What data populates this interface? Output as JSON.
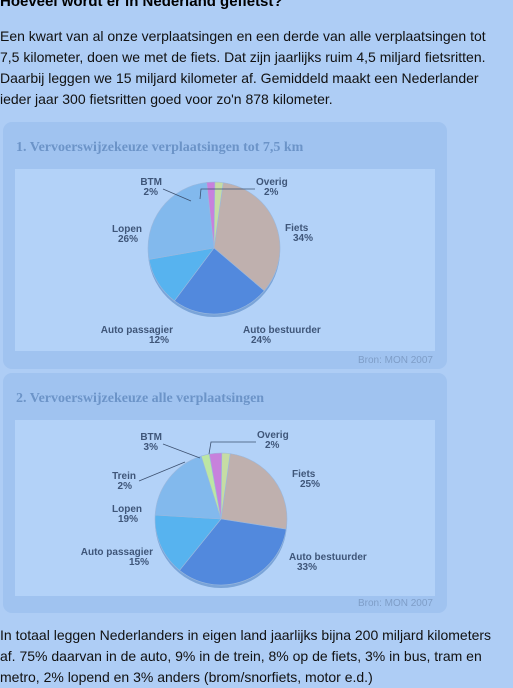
{
  "article": {
    "title": "Hoeveel wordt er in Nederland gefietst?",
    "intro": "Een kwart van al onze verplaatsingen en een derde van alle verplaatsingen tot 7,5 kilometer, doen we met de fiets. Dat zijn jaarlijks ruim 4,5 miljard fietsritten. Daarbij leggen we 15 miljard kilometer af. Gemiddeld maakt een Nederlander ieder jaar 300 fietsritten goed voor zo'n 878 kilometer.",
    "closing": "In totaal leggen Nederlanders in eigen land jaarlijks bijna 200 miljard kilometers af. 75% daarvan in de auto, 9% in de trein, 8% op de fiets, 3% in bus, tram en metro, 2% lopend en 3% anders (brom/snorfiets, motor e.d.)"
  },
  "colors": {
    "fiets": "#bfb0ae",
    "auto_bestuurder": "#5289dd",
    "auto_passagier": "#57b3ef",
    "lopen": "#82b9ed",
    "trein": "#bce6a4",
    "btm": "#c781dc",
    "overig": "#c6dca4"
  },
  "chart_data": [
    {
      "type": "pie",
      "title": "1. Vervoerswijzekeuze verplaatsingen tot 7,5 km",
      "source": "Bron: MON 2007",
      "slices": [
        {
          "label": "Fiets",
          "pct": "34%",
          "value": 34,
          "key": "fiets"
        },
        {
          "label": "Auto bestuurder",
          "pct": "24%",
          "value": 24,
          "key": "auto_bestuurder"
        },
        {
          "label": "Auto passagier",
          "pct": "12%",
          "value": 12,
          "key": "auto_passagier"
        },
        {
          "label": "Lopen",
          "pct": "26%",
          "value": 26,
          "key": "lopen"
        },
        {
          "label": "BTM",
          "pct": "2%",
          "value": 2,
          "key": "btm"
        },
        {
          "label": "Overig",
          "pct": "2%",
          "value": 2,
          "key": "overig"
        }
      ]
    },
    {
      "type": "pie",
      "title": "2. Vervoerswijzekeuze alle verplaatsingen",
      "source": "Bron: MON 2007",
      "slices": [
        {
          "label": "Fiets",
          "pct": "25%",
          "value": 25,
          "key": "fiets"
        },
        {
          "label": "Auto bestuurder",
          "pct": "33%",
          "value": 33,
          "key": "auto_bestuurder"
        },
        {
          "label": "Auto passagier",
          "pct": "15%",
          "value": 15,
          "key": "auto_passagier"
        },
        {
          "label": "Lopen",
          "pct": "19%",
          "value": 19,
          "key": "lopen"
        },
        {
          "label": "Trein",
          "pct": "2%",
          "value": 2,
          "key": "trein"
        },
        {
          "label": "BTM",
          "pct": "3%",
          "value": 3,
          "key": "btm"
        },
        {
          "label": "Overig",
          "pct": "2%",
          "value": 2,
          "key": "overig"
        }
      ]
    }
  ]
}
